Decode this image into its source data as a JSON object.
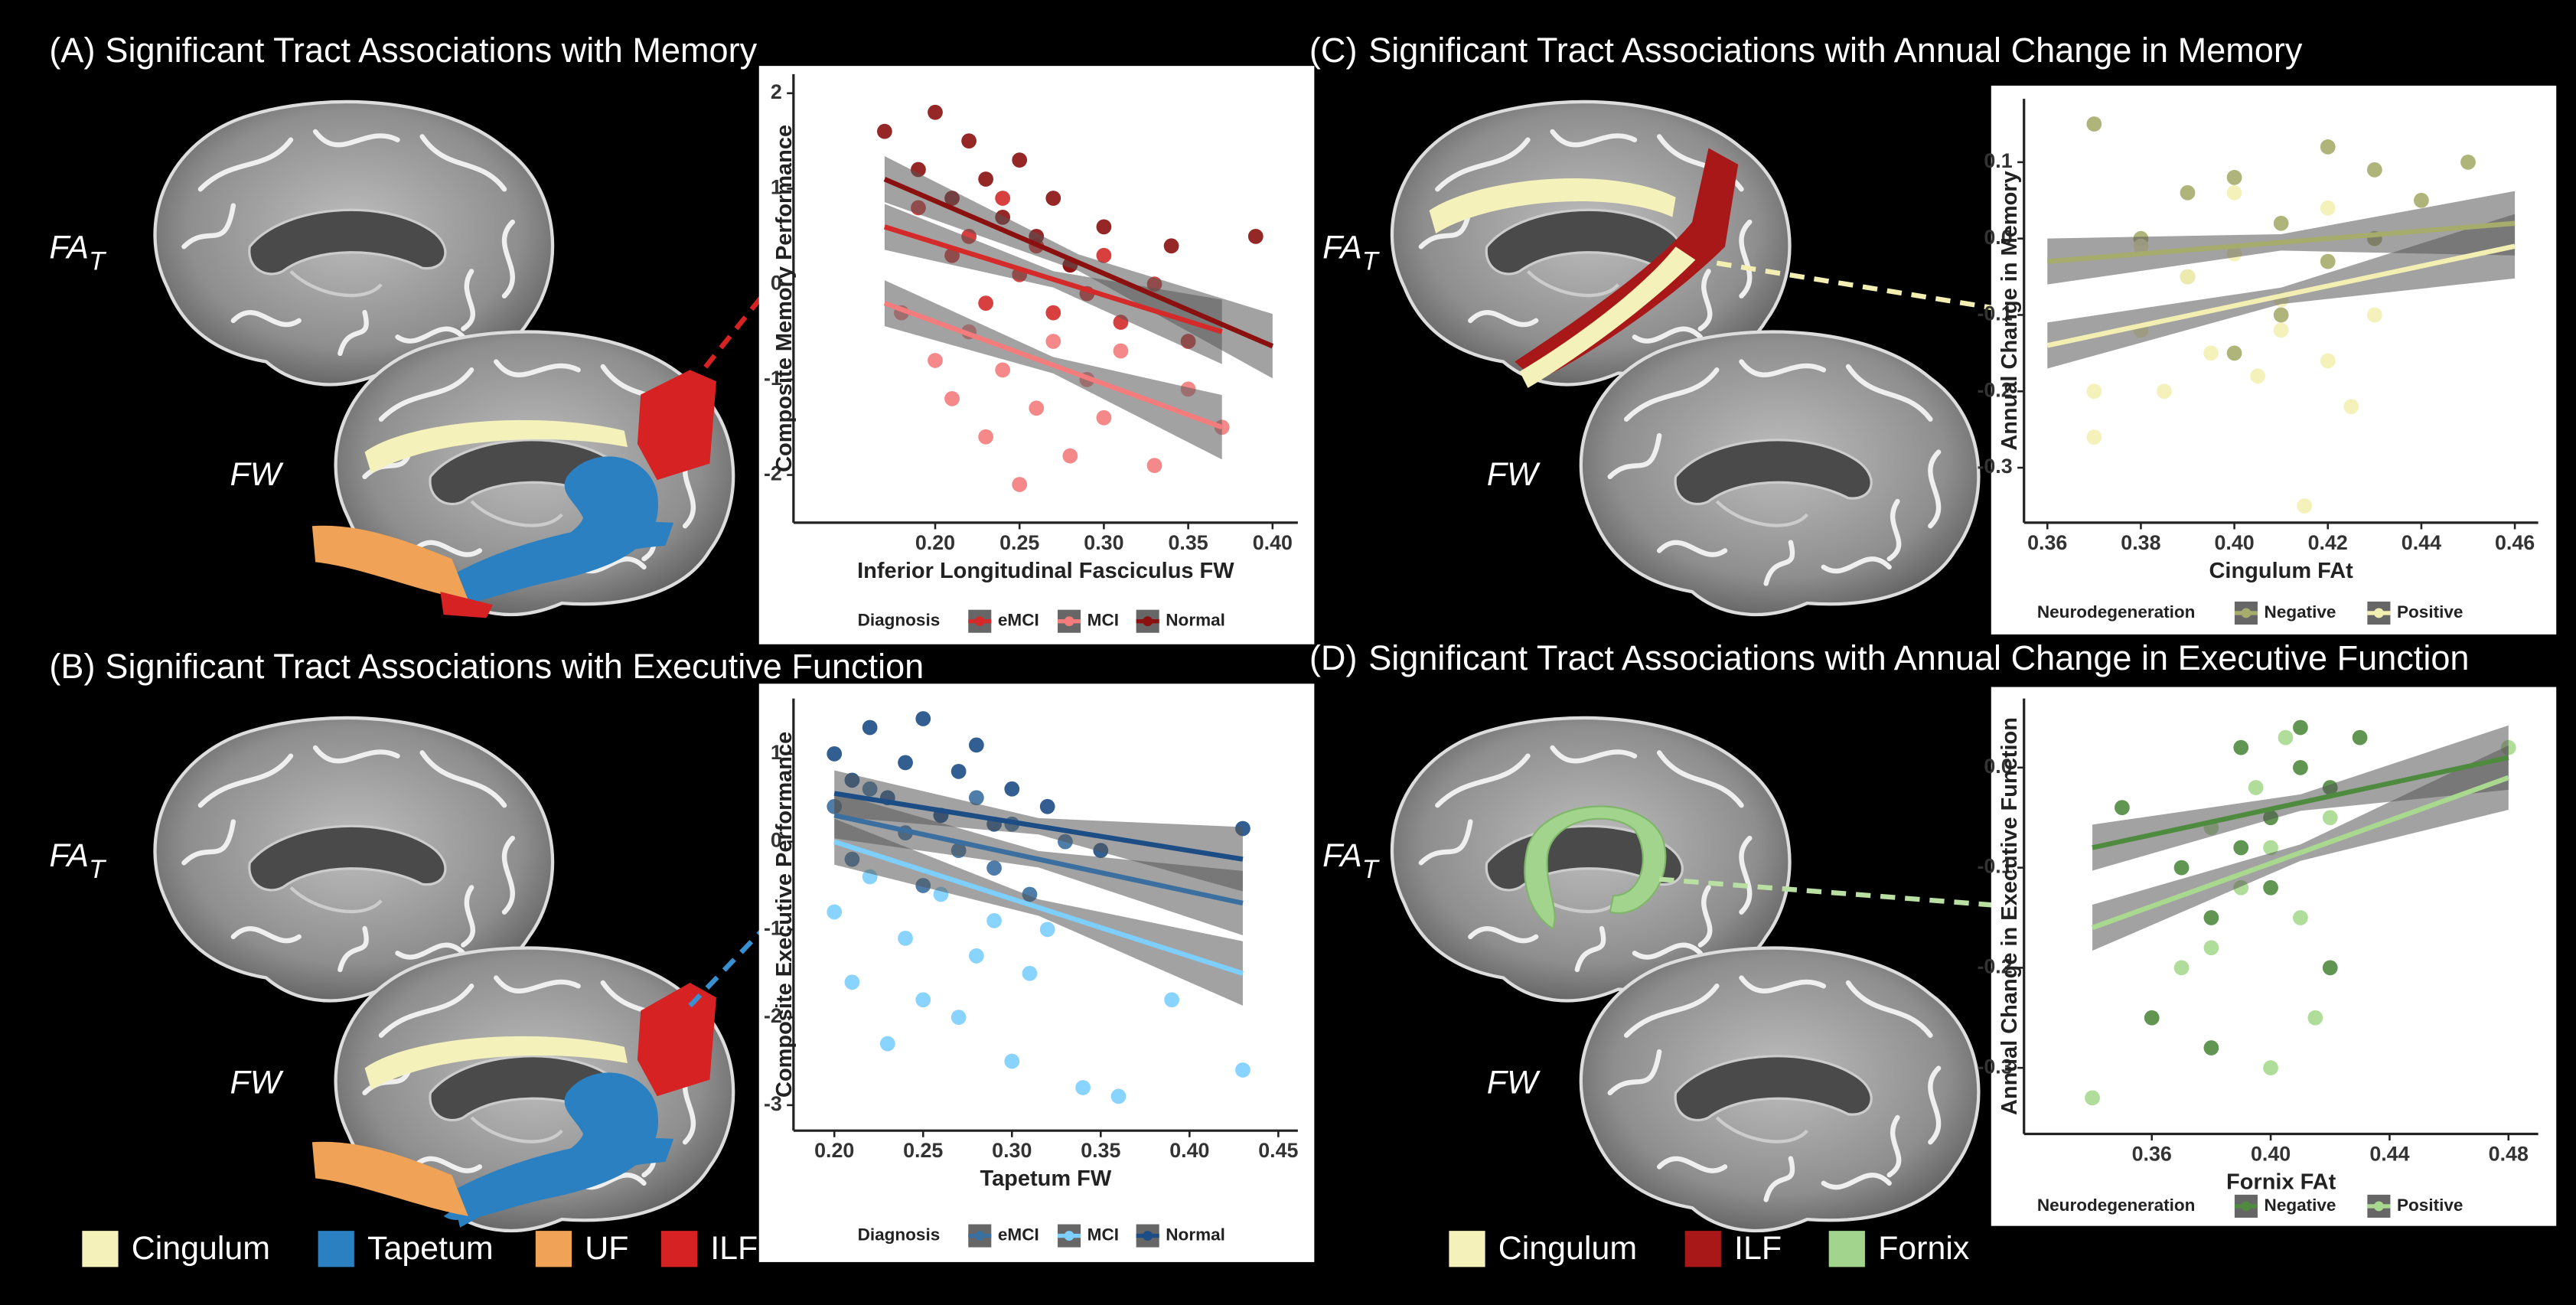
{
  "panels": [
    {
      "label": "(A)",
      "title": "Significant Tract Associations with Memory",
      "fa_label": "FA",
      "fa_sub": "T",
      "fw_label": "FW"
    },
    {
      "label": "(B)",
      "title": "Significant Tract Associations with Executive Function",
      "fa_label": "FA",
      "fa_sub": "T",
      "fw_label": "FW"
    },
    {
      "label": "(C)",
      "title": "Significant Tract Associations with Annual Change in Memory",
      "fa_label": "FA",
      "fa_sub": "T",
      "fw_label": "FW"
    },
    {
      "label": "(D)",
      "title": "Significant Tract Associations with Annual Change in Executive Function",
      "fa_label": "FA",
      "fa_sub": "T",
      "fw_label": "FW"
    }
  ],
  "tract_legends": [
    [
      {
        "name": "Cingulum",
        "color": "#f5f1ba"
      },
      {
        "name": "Tapetum",
        "color": "#2a80c0"
      },
      {
        "name": "UF",
        "color": "#f0a356"
      },
      {
        "name": "ILF",
        "color": "#d62222"
      }
    ],
    [
      {
        "name": "Cingulum",
        "color": "#f5f1ba"
      },
      {
        "name": "ILF",
        "color": "#a81818"
      },
      {
        "name": "Fornix",
        "color": "#a2d48e"
      }
    ]
  ],
  "chart_data": [
    {
      "type": "scatter",
      "x_label": "Inferior Longitudinal Fasciculus FW",
      "y_label": "Composite Memory Performance",
      "legend_title": "Diagnosis",
      "xlim": [
        0.116,
        0.415
      ],
      "ylim": [
        -2.5,
        2.2
      ],
      "xticks": [
        {
          "value": 0.2,
          "label": "0.20"
        },
        {
          "value": 0.25,
          "label": "0.25"
        },
        {
          "value": 0.3,
          "label": "0.30"
        },
        {
          "value": 0.35,
          "label": "0.35"
        },
        {
          "value": 0.4,
          "label": "0.40"
        }
      ],
      "yticks": [
        2,
        1,
        0,
        -1,
        -2
      ],
      "series": [
        {
          "name": "eMCI",
          "color": "#d42a2a",
          "x": [
            0.19,
            0.21,
            0.22,
            0.23,
            0.24,
            0.25,
            0.26,
            0.27,
            0.28,
            0.29,
            0.3,
            0.31,
            0.33,
            0.35
          ],
          "values": [
            0.8,
            0.3,
            0.5,
            -0.2,
            0.9,
            0.1,
            0.4,
            -0.3,
            0.2,
            -0.1,
            0.3,
            -0.4,
            0.0,
            -0.6
          ],
          "fit_x": [
            0.17,
            0.37
          ],
          "fit_y": [
            0.6,
            -0.5
          ]
        },
        {
          "name": "MCI",
          "color": "#f47c7c",
          "x": [
            0.18,
            0.2,
            0.21,
            0.22,
            0.23,
            0.24,
            0.25,
            0.26,
            0.27,
            0.28,
            0.29,
            0.3,
            0.31,
            0.33,
            0.35,
            0.37
          ],
          "values": [
            -0.3,
            -0.8,
            -1.2,
            -0.5,
            -1.6,
            -0.9,
            -2.1,
            -1.3,
            -0.6,
            -1.8,
            -1.0,
            -1.4,
            -0.7,
            -1.9,
            -1.1,
            -1.5
          ],
          "fit_x": [
            0.17,
            0.37
          ],
          "fit_y": [
            -0.2,
            -1.5
          ]
        },
        {
          "name": "Normal",
          "color": "#8b1010",
          "x": [
            0.17,
            0.19,
            0.2,
            0.21,
            0.22,
            0.23,
            0.24,
            0.25,
            0.26,
            0.27,
            0.28,
            0.3,
            0.34,
            0.39
          ],
          "values": [
            1.6,
            1.2,
            1.8,
            0.9,
            1.5,
            1.1,
            0.7,
            1.3,
            0.5,
            0.9,
            0.2,
            0.6,
            0.4,
            0.5
          ],
          "fit_x": [
            0.17,
            0.4
          ],
          "fit_y": [
            1.1,
            -0.65
          ]
        }
      ]
    },
    {
      "type": "scatter",
      "x_label": "Tapetum FW",
      "y_label": "Composite Executive Performance",
      "legend_title": "Diagnosis",
      "xlim": [
        0.177,
        0.461
      ],
      "ylim": [
        -3.29,
        1.63
      ],
      "xticks": [
        {
          "value": 0.2,
          "label": "0.20"
        },
        {
          "value": 0.25,
          "label": "0.25"
        },
        {
          "value": 0.3,
          "label": "0.30"
        },
        {
          "value": 0.35,
          "label": "0.35"
        },
        {
          "value": 0.4,
          "label": "0.40"
        },
        {
          "value": 0.45,
          "label": "0.45"
        }
      ],
      "yticks": [
        1,
        0,
        -1,
        -2,
        -3
      ],
      "series": [
        {
          "name": "eMCI",
          "color": "#3a6f9f",
          "x": [
            0.2,
            0.21,
            0.22,
            0.24,
            0.25,
            0.26,
            0.27,
            0.28,
            0.29,
            0.3,
            0.31,
            0.33
          ],
          "values": [
            0.4,
            -0.2,
            0.6,
            0.1,
            -0.5,
            0.3,
            -0.1,
            0.5,
            -0.3,
            0.2,
            -0.6,
            0.0
          ],
          "fit_x": [
            0.2,
            0.43
          ],
          "fit_y": [
            0.3,
            -0.7
          ]
        },
        {
          "name": "MCI",
          "color": "#7ccfff",
          "x": [
            0.2,
            0.21,
            0.22,
            0.23,
            0.24,
            0.25,
            0.26,
            0.27,
            0.28,
            0.29,
            0.3,
            0.31,
            0.32,
            0.34,
            0.36,
            0.39,
            0.43
          ],
          "values": [
            -0.8,
            -1.6,
            -0.4,
            -2.3,
            -1.1,
            -1.8,
            -0.6,
            -2.0,
            -1.3,
            -0.9,
            -2.5,
            -1.5,
            -1.0,
            -2.8,
            -2.9,
            -1.8,
            -2.6
          ],
          "fit_x": [
            0.2,
            0.43
          ],
          "fit_y": [
            0.0,
            -1.5
          ]
        },
        {
          "name": "Normal",
          "color": "#1c4d85",
          "x": [
            0.2,
            0.21,
            0.22,
            0.23,
            0.24,
            0.25,
            0.26,
            0.27,
            0.28,
            0.29,
            0.3,
            0.32,
            0.35,
            0.43
          ],
          "values": [
            1.0,
            0.7,
            1.3,
            0.5,
            0.9,
            1.4,
            0.3,
            0.8,
            1.1,
            0.2,
            0.6,
            0.4,
            -0.1,
            0.15
          ],
          "fit_x": [
            0.2,
            0.43
          ],
          "fit_y": [
            0.55,
            -0.2
          ]
        }
      ]
    },
    {
      "type": "scatter",
      "x_label": "Cingulum FAt",
      "y_label": "Annual Change in Memory",
      "legend_title": "Neurodegeneration",
      "xlim": [
        0.355,
        0.465
      ],
      "ylim": [
        -0.372,
        0.183
      ],
      "xticks": [
        0.36,
        0.38,
        {
          "value": 0.4,
          "label": "0.40"
        },
        0.42,
        0.44,
        0.46
      ],
      "yticks": [
        0.1,
        {
          "value": 0,
          "label": "0.0"
        },
        -0.1,
        -0.2,
        -0.3
      ],
      "series": [
        {
          "name": "Negative",
          "color": "#a5ac6c",
          "x": [
            0.37,
            0.38,
            0.39,
            0.4,
            0.41,
            0.42,
            0.43,
            0.44,
            0.45,
            0.39,
            0.41,
            0.43,
            0.4,
            0.42
          ],
          "values": [
            0.15,
            0.0,
            -0.05,
            0.08,
            0.02,
            -0.03,
            0.09,
            0.05,
            0.1,
            0.06,
            -0.1,
            0.0,
            -0.15,
            0.12
          ],
          "fit_x": [
            0.36,
            0.46
          ],
          "fit_y": [
            -0.03,
            0.02
          ]
        },
        {
          "name": "Positive",
          "color": "#f3efb3",
          "x": [
            0.37,
            0.38,
            0.385,
            0.39,
            0.395,
            0.4,
            0.405,
            0.41,
            0.415,
            0.42,
            0.425,
            0.43,
            0.38,
            0.4,
            0.41,
            0.42,
            0.37
          ],
          "values": [
            -0.26,
            -0.12,
            -0.2,
            -0.05,
            -0.15,
            -0.02,
            -0.18,
            -0.08,
            -0.35,
            0.04,
            -0.22,
            -0.1,
            -0.01,
            0.06,
            -0.12,
            -0.16,
            -0.2
          ],
          "fit_x": [
            0.36,
            0.46
          ],
          "fit_y": [
            -0.14,
            -0.01
          ]
        }
      ]
    },
    {
      "type": "scatter",
      "x_label": "Fornix FAt",
      "y_label": "Annual Change in Executive Function",
      "legend_title": "Neurodegeneration",
      "xlim": [
        0.317,
        0.49
      ],
      "ylim": [
        -0.366,
        0.069
      ],
      "xticks": [
        0.36,
        {
          "value": 0.4,
          "label": "0.40"
        },
        0.44,
        0.48
      ],
      "yticks": [
        {
          "value": 0,
          "label": "0.0"
        },
        -0.1,
        -0.2,
        -0.3
      ],
      "series": [
        {
          "name": "Negative",
          "color": "#4f8b3f",
          "x": [
            0.35,
            0.37,
            0.38,
            0.39,
            0.4,
            0.41,
            0.42,
            0.43,
            0.38,
            0.4,
            0.42,
            0.39,
            0.41,
            0.36
          ],
          "values": [
            -0.04,
            -0.1,
            -0.15,
            0.02,
            -0.05,
            0.04,
            -0.02,
            0.03,
            -0.28,
            -0.12,
            -0.2,
            -0.08,
            0.0,
            -0.25
          ],
          "fit_x": [
            0.34,
            0.48
          ],
          "fit_y": [
            -0.08,
            0.01
          ]
        },
        {
          "name": "Positive",
          "color": "#a9d98f",
          "x": [
            0.34,
            0.37,
            0.38,
            0.39,
            0.395,
            0.4,
            0.405,
            0.41,
            0.415,
            0.42,
            0.38,
            0.4,
            0.48
          ],
          "values": [
            -0.33,
            -0.2,
            -0.06,
            -0.12,
            -0.02,
            -0.08,
            0.03,
            -0.15,
            -0.25,
            -0.05,
            -0.18,
            -0.3,
            0.02
          ],
          "fit_x": [
            0.34,
            0.48
          ],
          "fit_y": [
            -0.16,
            -0.01
          ]
        }
      ]
    }
  ]
}
